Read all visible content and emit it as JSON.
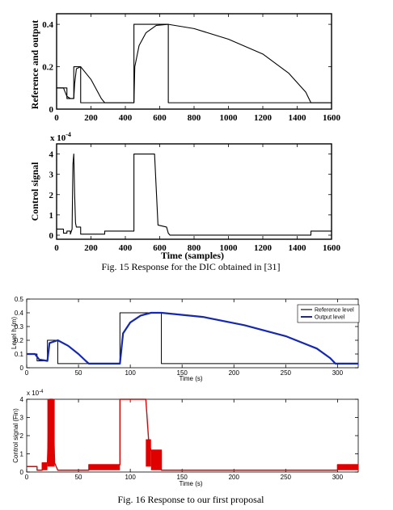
{
  "figure15": {
    "caption": "Fig. 15 Response for the DIC obtained in [31]",
    "top": {
      "type": "line",
      "ylabel": "Reference and output",
      "xlim": [
        0,
        1600
      ],
      "ylim": [
        0,
        0.45
      ],
      "xticks": [
        0,
        200,
        400,
        600,
        800,
        1000,
        1200,
        1400,
        1600
      ],
      "yticks": [
        0,
        0.2,
        0.4
      ],
      "ytick_labels": [
        "0",
        "0.2",
        "0.4"
      ],
      "series": [
        {
          "points": [
            [
              0,
              0.1
            ],
            [
              60,
              0.1
            ],
            [
              60,
              0.05
            ],
            [
              100,
              0.05
            ],
            [
              100,
              0.2
            ],
            [
              140,
              0.2
            ],
            [
              140,
              0.03
            ],
            [
              450,
              0.03
            ],
            [
              450,
              0.4
            ],
            [
              650,
              0.4
            ],
            [
              650,
              0.03
            ],
            [
              1600,
              0.03
            ]
          ]
        },
        {
          "points": [
            [
              0,
              0.1
            ],
            [
              40,
              0.1
            ],
            [
              60,
              0.06
            ],
            [
              80,
              0.05
            ],
            [
              100,
              0.05
            ],
            [
              105,
              0.12
            ],
            [
              115,
              0.19
            ],
            [
              140,
              0.2
            ],
            [
              160,
              0.18
            ],
            [
              200,
              0.14
            ],
            [
              240,
              0.08
            ],
            [
              260,
              0.05
            ],
            [
              280,
              0.03
            ],
            [
              450,
              0.03
            ],
            [
              455,
              0.2
            ],
            [
              480,
              0.3
            ],
            [
              520,
              0.36
            ],
            [
              580,
              0.395
            ],
            [
              650,
              0.4
            ],
            [
              800,
              0.38
            ],
            [
              1000,
              0.33
            ],
            [
              1200,
              0.26
            ],
            [
              1350,
              0.17
            ],
            [
              1450,
              0.08
            ],
            [
              1480,
              0.03
            ],
            [
              1600,
              0.03
            ]
          ]
        }
      ]
    },
    "bottom": {
      "type": "line",
      "ylabel": "Control signal",
      "xlabel": "Time (samples)",
      "exponent": "x 10",
      "exponent_power": "-4",
      "xlim": [
        0,
        1600
      ],
      "ylim": [
        -0.2,
        4.5
      ],
      "xticks": [
        0,
        200,
        400,
        600,
        800,
        1000,
        1200,
        1400,
        1600
      ],
      "yticks": [
        0,
        1,
        2,
        3,
        4
      ],
      "series": [
        {
          "points": [
            [
              0,
              0.3
            ],
            [
              40,
              0.3
            ],
            [
              40,
              0.1
            ],
            [
              60,
              0.1
            ],
            [
              60,
              0.2
            ],
            [
              80,
              0.2
            ],
            [
              80,
              0.05
            ],
            [
              90,
              0.3
            ],
            [
              95,
              3.5
            ],
            [
              100,
              4.0
            ],
            [
              105,
              2.0
            ],
            [
              110,
              0.6
            ],
            [
              115,
              0.4
            ],
            [
              140,
              0.4
            ],
            [
              140,
              0.05
            ],
            [
              280,
              0.05
            ],
            [
              280,
              0.2
            ],
            [
              450,
              0.2
            ],
            [
              450,
              4.0
            ],
            [
              570,
              4.0
            ],
            [
              590,
              0.5
            ],
            [
              640,
              0.4
            ],
            [
              650,
              0.1
            ],
            [
              660,
              0.0
            ],
            [
              1480,
              0.0
            ],
            [
              1480,
              0.2
            ],
            [
              1600,
              0.2
            ]
          ]
        }
      ]
    }
  },
  "figure16": {
    "caption": "Fig. 16 Response to our first proposal",
    "top": {
      "type": "line",
      "ylabel": "Level h (m)",
      "xlabel": "Time (s)",
      "xlim": [
        0,
        320
      ],
      "ylim": [
        0,
        0.5
      ],
      "xticks": [
        0,
        50,
        100,
        150,
        200,
        250,
        300
      ],
      "yticks": [
        0,
        0.1,
        0.2,
        0.3,
        0.4,
        0.5
      ],
      "legend": [
        "Reference level",
        "Output level"
      ],
      "colors": {
        "reference": "#000000",
        "output": "#1428b4"
      },
      "series": [
        {
          "name": "Reference level",
          "points": [
            [
              0,
              0.1
            ],
            [
              10,
              0.1
            ],
            [
              10,
              0.05
            ],
            [
              20,
              0.05
            ],
            [
              20,
              0.2
            ],
            [
              30,
              0.2
            ],
            [
              30,
              0.03
            ],
            [
              90,
              0.03
            ],
            [
              90,
              0.4
            ],
            [
              130,
              0.4
            ],
            [
              130,
              0.03
            ],
            [
              320,
              0.03
            ]
          ]
        },
        {
          "name": "Output level",
          "points": [
            [
              0,
              0.1
            ],
            [
              8,
              0.1
            ],
            [
              12,
              0.06
            ],
            [
              20,
              0.05
            ],
            [
              22,
              0.18
            ],
            [
              30,
              0.2
            ],
            [
              40,
              0.16
            ],
            [
              50,
              0.1
            ],
            [
              57,
              0.05
            ],
            [
              60,
              0.03
            ],
            [
              90,
              0.03
            ],
            [
              93,
              0.25
            ],
            [
              100,
              0.33
            ],
            [
              110,
              0.38
            ],
            [
              120,
              0.4
            ],
            [
              130,
              0.4
            ],
            [
              170,
              0.37
            ],
            [
              210,
              0.31
            ],
            [
              250,
              0.23
            ],
            [
              280,
              0.14
            ],
            [
              293,
              0.07
            ],
            [
              298,
              0.03
            ],
            [
              320,
              0.03
            ]
          ]
        }
      ]
    },
    "bottom": {
      "type": "line",
      "ylabel": "Control signal (Fin)",
      "xlabel": "Time (s)",
      "exponent": "x 10",
      "exponent_power": "-4",
      "xlim": [
        0,
        320
      ],
      "ylim": [
        0,
        4
      ],
      "xticks": [
        0,
        50,
        100,
        150,
        200,
        250,
        300
      ],
      "yticks": [
        0,
        1,
        2,
        3,
        4
      ],
      "colors": {
        "signal": "#e10000"
      },
      "series": [
        {
          "name": "Control signal (Fin)",
          "points": [
            [
              0,
              0.3
            ],
            [
              10,
              0.3
            ],
            [
              10,
              0.1
            ],
            [
              15,
              0.1
            ],
            [
              15,
              0.5
            ],
            [
              20,
              0.5
            ],
            [
              22,
              4.0
            ],
            [
              25,
              4.0
            ],
            [
              27,
              0.5
            ],
            [
              30,
              0.1
            ],
            [
              60,
              0.1
            ],
            [
              60,
              0.4
            ],
            [
              90,
              0.4
            ],
            [
              90,
              4.0
            ],
            [
              115,
              4.0
            ],
            [
              118,
              1.5
            ],
            [
              120,
              1.2
            ],
            [
              130,
              1.2
            ],
            [
              130,
              0.1
            ],
            [
              300,
              0.1
            ],
            [
              300,
              0.4
            ],
            [
              320,
              0.4
            ]
          ]
        }
      ],
      "filled_regions": [
        [
          15,
          20,
          0.1,
          0.5
        ],
        [
          20,
          27,
          0.3,
          4.0
        ],
        [
          60,
          90,
          0.1,
          0.4
        ],
        [
          115,
          120,
          0.3,
          1.8
        ],
        [
          120,
          130,
          0.1,
          1.2
        ],
        [
          300,
          320,
          0.1,
          0.4
        ]
      ]
    }
  },
  "chart_data": [
    {
      "type": "line",
      "title": "",
      "xlabel": "",
      "ylabel": "Reference and output",
      "xlim": [
        0,
        1600
      ],
      "ylim": [
        0,
        0.45
      ],
      "series": [
        {
          "x": [
            0,
            60,
            60,
            100,
            100,
            140,
            140,
            450,
            450,
            650,
            650,
            1600
          ],
          "y": [
            0.1,
            0.1,
            0.05,
            0.05,
            0.2,
            0.2,
            0.03,
            0.03,
            0.4,
            0.4,
            0.03,
            0.03
          ]
        },
        {
          "x": [
            0,
            40,
            60,
            80,
            100,
            105,
            115,
            140,
            160,
            200,
            240,
            260,
            280,
            450,
            455,
            480,
            520,
            580,
            650,
            800,
            1000,
            1200,
            1350,
            1450,
            1480,
            1600
          ],
          "y": [
            0.1,
            0.1,
            0.06,
            0.05,
            0.05,
            0.12,
            0.19,
            0.2,
            0.18,
            0.14,
            0.08,
            0.05,
            0.03,
            0.03,
            0.2,
            0.3,
            0.36,
            0.395,
            0.4,
            0.38,
            0.33,
            0.26,
            0.17,
            0.08,
            0.03,
            0.03
          ]
        }
      ]
    },
    {
      "type": "line",
      "title": "",
      "xlabel": "Time (samples)",
      "ylabel": "Control signal",
      "xlim": [
        0,
        1600
      ],
      "ylim": [
        -0.2,
        4.5
      ]
    },
    {
      "type": "line",
      "title": "",
      "xlabel": "Time (s)",
      "ylabel": "Level h (m)",
      "xlim": [
        0,
        320
      ],
      "ylim": [
        0,
        0.5
      ],
      "series": [
        {
          "name": "Reference level"
        },
        {
          "name": "Output level"
        }
      ]
    },
    {
      "type": "line",
      "title": "",
      "xlabel": "Time (s)",
      "ylabel": "Control signal (Fin)",
      "xlim": [
        0,
        320
      ],
      "ylim": [
        0,
        4
      ]
    }
  ]
}
